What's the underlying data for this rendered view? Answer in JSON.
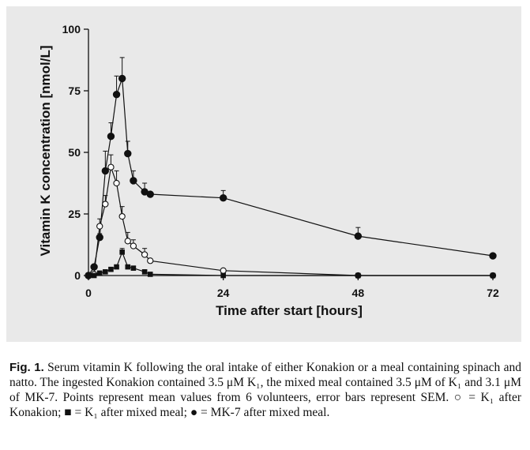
{
  "chart_data": {
    "type": "scatter",
    "xlabel": "Time after start [hours]",
    "ylabel": "Vitamin K concentration [nmol/L]",
    "xlim": [
      0,
      72
    ],
    "ylim": [
      0,
      100
    ],
    "xticks": [
      0,
      24,
      48,
      72
    ],
    "yticks": [
      0,
      25,
      50,
      75,
      100
    ],
    "grid": false,
    "series": [
      {
        "key": "mk7_mixed",
        "marker": "filled-circle",
        "color": "#111111",
        "x": [
          0,
          1,
          2,
          3,
          4,
          5,
          6,
          7,
          8,
          10,
          11,
          24,
          48,
          72
        ],
        "y": [
          0,
          3.5,
          15.5,
          42.5,
          56.5,
          73.5,
          80,
          49.5,
          38.5,
          34,
          33,
          31.5,
          16,
          8
        ],
        "err": [
          0,
          0,
          1.5,
          8,
          5.5,
          7.5,
          8.5,
          5,
          4,
          3.5,
          0,
          3,
          3.5,
          0
        ]
      },
      {
        "key": "k1_konakion",
        "marker": "open-circle",
        "color": "#111111",
        "x": [
          0,
          1,
          2,
          3,
          4,
          5,
          6,
          7,
          8,
          10,
          11,
          24,
          48,
          72
        ],
        "y": [
          0,
          0.5,
          20,
          29,
          44,
          37.5,
          24,
          14,
          12,
          8.5,
          6,
          2,
          0,
          0
        ],
        "err": [
          0,
          0,
          3,
          3.5,
          5,
          5,
          4,
          3.5,
          2.5,
          2.5,
          0,
          0,
          0,
          0
        ]
      },
      {
        "key": "k1_mixed",
        "marker": "filled-square",
        "color": "#111111",
        "x": [
          0,
          1,
          2,
          3,
          4,
          5,
          6,
          7,
          8,
          10,
          11,
          24,
          48,
          72
        ],
        "y": [
          0,
          0,
          1,
          1.5,
          2.5,
          3.5,
          9.5,
          3.5,
          3,
          1.5,
          0.5,
          0,
          0,
          0
        ],
        "err": [
          0,
          0,
          0,
          0,
          0,
          0,
          1.5,
          0,
          0,
          0,
          0,
          0,
          0,
          0
        ]
      }
    ]
  },
  "caption": {
    "label": "Fig. 1.",
    "text": " Serum vitamin K following the oral intake of either Konakion or a meal containing spinach and natto. The ingested Konakion contained 3.5 μM K₁, the mixed meal contained 3.5 μM of K₁ and 3.1 μM of MK-7. Points represent mean values from 6 volunteers, error bars represent SEM. ○ = K₁ after Konakion; ■ = K₁ after mixed meal; ● = MK-7 after mixed meal."
  }
}
